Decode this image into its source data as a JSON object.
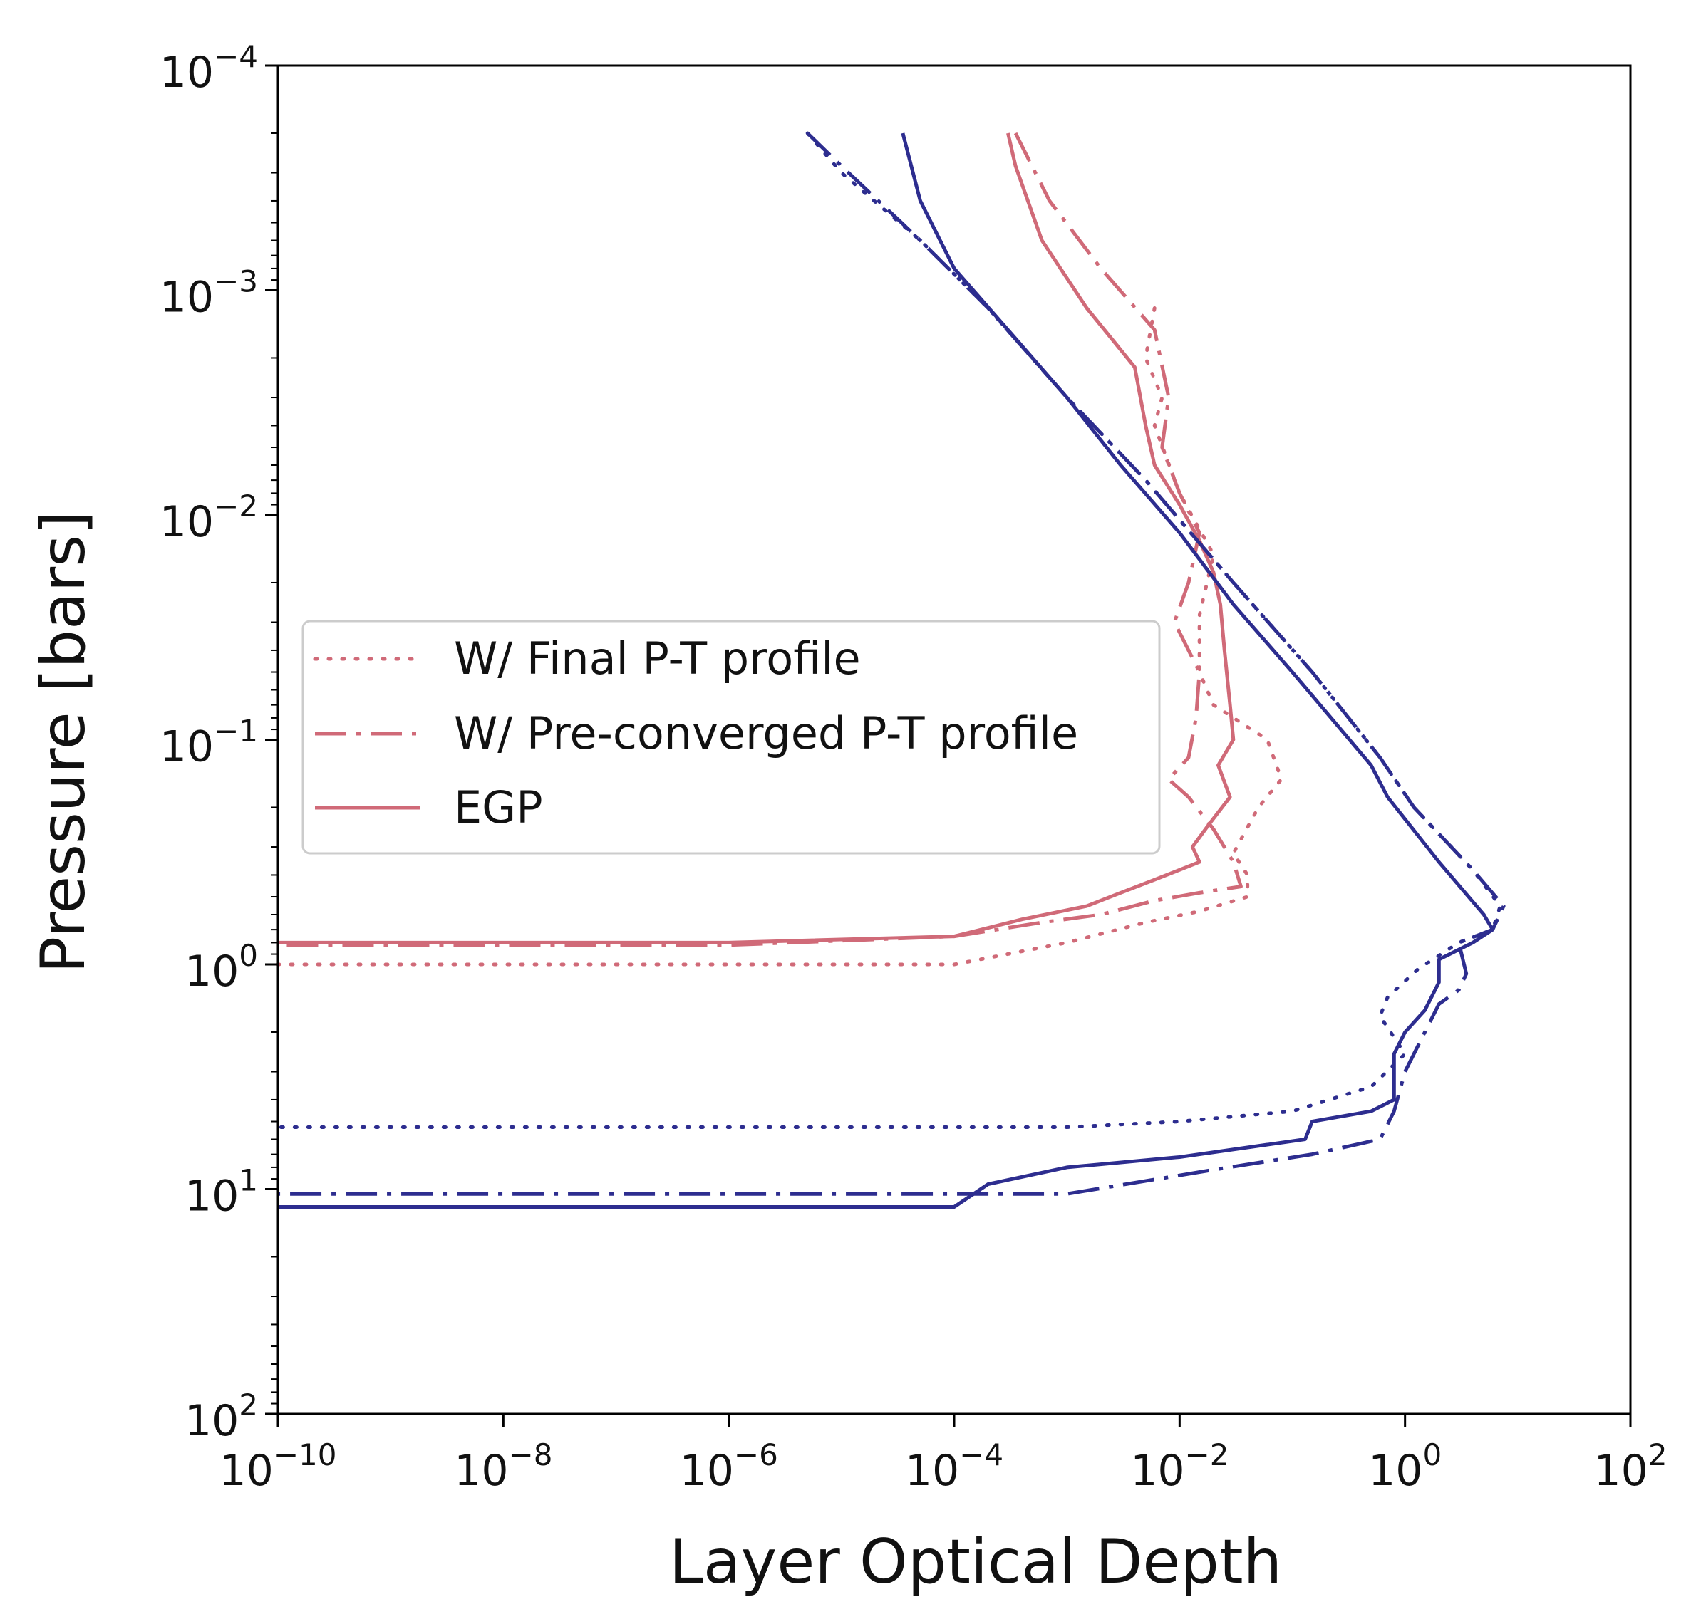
{
  "colors": {
    "red": "#d06a78",
    "blue": "#2d2d8f",
    "axis": "#000000",
    "legend_border": "#cccccc"
  },
  "chart_data": {
    "type": "line",
    "xlabel": "Layer Optical Depth",
    "ylabel": "Pressure [bars]",
    "xscale": "log",
    "yscale": "log",
    "xlim": [
      1e-10,
      100
    ],
    "ylim": [
      0.0001,
      100
    ],
    "y_inverted": true,
    "x_ticks": [
      {
        "value": 1e-10,
        "base": "10",
        "exp": "−10"
      },
      {
        "value": 1e-08,
        "base": "10",
        "exp": "−8"
      },
      {
        "value": 1e-06,
        "base": "10",
        "exp": "−6"
      },
      {
        "value": 0.0001,
        "base": "10",
        "exp": "−4"
      },
      {
        "value": 0.01,
        "base": "10",
        "exp": "−2"
      },
      {
        "value": 1,
        "base": "10",
        "exp": "0"
      },
      {
        "value": 100,
        "base": "10",
        "exp": "2"
      }
    ],
    "y_ticks": [
      {
        "value": 0.0001,
        "base": "10",
        "exp": "−4"
      },
      {
        "value": 0.001,
        "base": "10",
        "exp": "−3"
      },
      {
        "value": 0.01,
        "base": "10",
        "exp": "−2"
      },
      {
        "value": 0.1,
        "base": "10",
        "exp": "−1"
      },
      {
        "value": 1,
        "base": "10",
        "exp": "0"
      },
      {
        "value": 10,
        "base": "10",
        "exp": "1"
      },
      {
        "value": 100,
        "base": "10",
        "exp": "2"
      }
    ],
    "legend": {
      "location": "center-left",
      "entries": [
        {
          "label": "W/ Final P-T profile",
          "style": "dotted",
          "color": "red"
        },
        {
          "label": "W/ Pre-converged P-T profile",
          "style": "dashdot",
          "color": "red"
        },
        {
          "label": "EGP",
          "style": "solid",
          "color": "red"
        }
      ]
    },
    "series": [
      {
        "name": "EGP (red)",
        "color": "red",
        "style": "solid",
        "points": [
          [
            0.0003,
            0.0002
          ],
          [
            0.00035,
            0.00028
          ],
          [
            0.0006,
            0.0006
          ],
          [
            0.0015,
            0.0012
          ],
          [
            0.004,
            0.0022
          ],
          [
            0.005,
            0.004
          ],
          [
            0.006,
            0.006
          ],
          [
            0.01,
            0.009
          ],
          [
            0.015,
            0.013
          ],
          [
            0.02,
            0.018
          ],
          [
            0.023,
            0.025
          ],
          [
            0.025,
            0.04
          ],
          [
            0.028,
            0.07
          ],
          [
            0.03,
            0.1
          ],
          [
            0.022,
            0.13
          ],
          [
            0.028,
            0.18
          ],
          [
            0.018,
            0.24
          ],
          [
            0.013,
            0.3
          ],
          [
            0.015,
            0.35
          ],
          [
            0.006,
            0.42
          ],
          [
            0.003,
            0.48
          ],
          [
            0.0015,
            0.55
          ],
          [
            0.0004,
            0.63
          ],
          [
            0.0001,
            0.75
          ],
          [
            1e-06,
            0.8
          ],
          [
            1e-10,
            0.8
          ]
        ]
      },
      {
        "name": "Final (red)",
        "color": "red",
        "style": "dotted",
        "points": [
          [
            0.006,
            0.0012
          ],
          [
            0.005,
            0.002
          ],
          [
            0.007,
            0.003
          ],
          [
            0.006,
            0.004
          ],
          [
            0.01,
            0.008
          ],
          [
            0.02,
            0.015
          ],
          [
            0.015,
            0.028
          ],
          [
            0.015,
            0.05
          ],
          [
            0.02,
            0.07
          ],
          [
            0.06,
            0.1
          ],
          [
            0.08,
            0.15
          ],
          [
            0.05,
            0.2
          ],
          [
            0.03,
            0.32
          ],
          [
            0.04,
            0.4
          ],
          [
            0.04,
            0.5
          ],
          [
            0.015,
            0.58
          ],
          [
            0.005,
            0.65
          ],
          [
            0.001,
            0.8
          ],
          [
            0.0001,
            1.0
          ],
          [
            1e-06,
            1.0
          ],
          [
            1e-10,
            1.0
          ]
        ]
      },
      {
        "name": "Pre-converged (red)",
        "color": "red",
        "style": "dashdot",
        "points": [
          [
            0.00035,
            0.0002
          ],
          [
            0.0007,
            0.0004
          ],
          [
            0.002,
            0.0008
          ],
          [
            0.006,
            0.0015
          ],
          [
            0.008,
            0.003
          ],
          [
            0.007,
            0.005
          ],
          [
            0.01,
            0.008
          ],
          [
            0.015,
            0.012
          ],
          [
            0.012,
            0.02
          ],
          [
            0.009,
            0.03
          ],
          [
            0.015,
            0.05
          ],
          [
            0.014,
            0.08
          ],
          [
            0.012,
            0.12
          ],
          [
            0.008,
            0.15
          ],
          [
            0.012,
            0.18
          ],
          [
            0.02,
            0.25
          ],
          [
            0.03,
            0.35
          ],
          [
            0.035,
            0.45
          ],
          [
            0.015,
            0.48
          ],
          [
            0.006,
            0.52
          ],
          [
            0.002,
            0.6
          ],
          [
            0.0006,
            0.65
          ],
          [
            0.0001,
            0.75
          ],
          [
            1e-06,
            0.82
          ],
          [
            1e-10,
            0.82
          ]
        ]
      },
      {
        "name": "EGP (blue)",
        "color": "blue",
        "style": "solid",
        "points": [
          [
            3.5e-05,
            0.0002
          ],
          [
            5e-05,
            0.0004
          ],
          [
            0.0001,
            0.0008
          ],
          [
            0.0003,
            0.0015
          ],
          [
            0.001,
            0.003
          ],
          [
            0.003,
            0.006
          ],
          [
            0.01,
            0.012
          ],
          [
            0.03,
            0.025
          ],
          [
            0.1,
            0.05
          ],
          [
            0.5,
            0.13
          ],
          [
            0.7,
            0.18
          ],
          [
            2,
            0.35
          ],
          [
            5,
            0.6
          ],
          [
            6,
            0.7
          ],
          [
            4,
            0.8
          ],
          [
            2,
            0.95
          ],
          [
            2,
            1.2
          ],
          [
            1.5,
            1.6
          ],
          [
            1,
            2.0
          ],
          [
            0.8,
            2.5
          ],
          [
            0.8,
            4.0
          ],
          [
            0.5,
            4.5
          ],
          [
            0.15,
            5.0
          ],
          [
            0.13,
            6.0
          ],
          [
            0.01,
            7.2
          ],
          [
            0.001,
            8.0
          ],
          [
            0.0002,
            9.5
          ],
          [
            0.0001,
            12.0
          ],
          [
            1e-06,
            12.0
          ],
          [
            1e-10,
            12.0
          ]
        ]
      },
      {
        "name": "Final (blue)",
        "color": "blue",
        "style": "dotted",
        "points": [
          [
            5e-06,
            0.0002
          ],
          [
            1e-05,
            0.0003
          ],
          [
            5e-05,
            0.0006
          ],
          [
            0.0002,
            0.0012
          ],
          [
            0.001,
            0.003
          ],
          [
            0.005,
            0.007
          ],
          [
            0.03,
            0.02
          ],
          [
            0.15,
            0.05
          ],
          [
            0.6,
            0.12
          ],
          [
            1.2,
            0.2
          ],
          [
            4,
            0.38
          ],
          [
            7,
            0.55
          ],
          [
            6,
            0.7
          ],
          [
            3,
            0.8
          ],
          [
            1.3,
            1.05
          ],
          [
            0.7,
            1.4
          ],
          [
            0.6,
            1.7
          ],
          [
            1.0,
            2.5
          ],
          [
            0.5,
            3.5
          ],
          [
            0.1,
            4.5
          ],
          [
            0.01,
            5.0
          ],
          [
            0.001,
            5.3
          ],
          [
            0.0001,
            5.3
          ],
          [
            1e-10,
            5.3
          ]
        ]
      },
      {
        "name": "Pre-converged (blue)",
        "color": "blue",
        "style": "dashdot",
        "points": [
          [
            5e-06,
            0.0002
          ],
          [
            1e-05,
            0.00028
          ],
          [
            5e-05,
            0.0006
          ],
          [
            0.0002,
            0.0012
          ],
          [
            0.001,
            0.003
          ],
          [
            0.005,
            0.007
          ],
          [
            0.03,
            0.02
          ],
          [
            0.15,
            0.05
          ],
          [
            0.6,
            0.12
          ],
          [
            1.2,
            0.2
          ],
          [
            4,
            0.38
          ],
          [
            7.5,
            0.55
          ],
          [
            6,
            0.7
          ],
          [
            3,
            0.8
          ],
          [
            3.5,
            1.1
          ],
          [
            3,
            1.3
          ],
          [
            2,
            1.5
          ],
          [
            1.5,
            2.0
          ],
          [
            1,
            3.0
          ],
          [
            0.8,
            4.5
          ],
          [
            0.6,
            6.0
          ],
          [
            0.15,
            7.0
          ],
          [
            0.02,
            8.2
          ],
          [
            0.001,
            10.5
          ],
          [
            0.0001,
            10.5
          ],
          [
            1e-10,
            10.5
          ]
        ]
      }
    ]
  }
}
